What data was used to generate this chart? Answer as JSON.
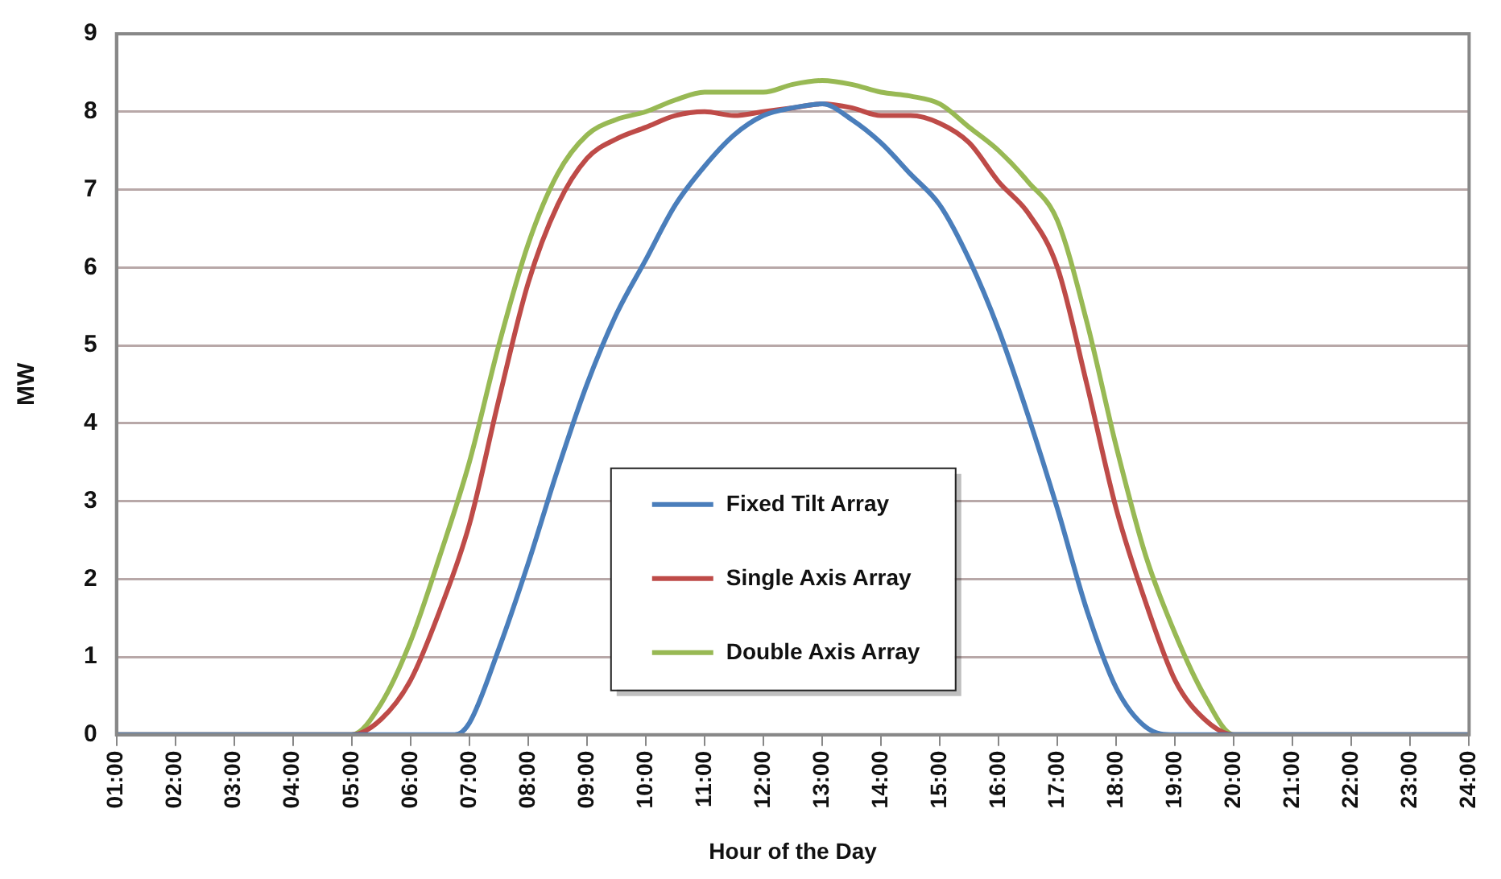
{
  "chart_data": {
    "type": "line",
    "xlabel": "Hour of the Day",
    "ylabel": "MW",
    "xlim": [
      1,
      24
    ],
    "xticks": [
      {
        "value": 1,
        "label": "01:00"
      },
      {
        "value": 2,
        "label": "02:00"
      },
      {
        "value": 3,
        "label": "03:00"
      },
      {
        "value": 4,
        "label": "04:00"
      },
      {
        "value": 5,
        "label": "05:00"
      },
      {
        "value": 6,
        "label": "06:00"
      },
      {
        "value": 7,
        "label": "07:00"
      },
      {
        "value": 8,
        "label": "08:00"
      },
      {
        "value": 9,
        "label": "09:00"
      },
      {
        "value": 10,
        "label": "10:00"
      },
      {
        "value": 11,
        "label": "11:00"
      },
      {
        "value": 12,
        "label": "12:00"
      },
      {
        "value": 13,
        "label": "13:00"
      },
      {
        "value": 14,
        "label": "14:00"
      },
      {
        "value": 15,
        "label": "15:00"
      },
      {
        "value": 16,
        "label": "16:00"
      },
      {
        "value": 17,
        "label": "17:00"
      },
      {
        "value": 18,
        "label": "18:00"
      },
      {
        "value": 19,
        "label": "19:00"
      },
      {
        "value": 20,
        "label": "20:00"
      },
      {
        "value": 21,
        "label": "21:00"
      },
      {
        "value": 22,
        "label": "22:00"
      },
      {
        "value": 23,
        "label": "23:00"
      },
      {
        "value": 24,
        "label": "24:00"
      }
    ],
    "ylim": [
      0,
      9
    ],
    "yticks": [
      0,
      1,
      2,
      3,
      4,
      5,
      6,
      7,
      8,
      9
    ],
    "grid": "y",
    "legend": "bottom",
    "marker": "none",
    "line_style": "solid",
    "series": [
      {
        "name": "Fixed Tilt Array",
        "color": "#4a7ebb",
        "x": [
          1,
          6.75,
          7,
          7.5,
          8,
          8.5,
          9,
          9.5,
          10,
          10.5,
          11,
          11.5,
          12,
          12.5,
          13,
          13.5,
          14,
          14.5,
          15,
          15.5,
          16,
          16.5,
          17,
          17.5,
          18,
          18.5,
          19,
          24
        ],
        "values": [
          0,
          0,
          0.15,
          1.1,
          2.2,
          3.4,
          4.5,
          5.4,
          6.1,
          6.8,
          7.3,
          7.7,
          7.95,
          8.05,
          8.1,
          7.9,
          7.6,
          7.2,
          6.8,
          6.1,
          5.2,
          4.1,
          2.9,
          1.6,
          0.6,
          0.1,
          0,
          0
        ]
      },
      {
        "name": "Single Axis Array",
        "color": "#be4b48",
        "x": [
          1,
          5,
          5.5,
          6,
          6.5,
          7,
          7.5,
          8,
          8.5,
          9,
          9.5,
          10,
          10.5,
          11,
          11.5,
          12,
          12.5,
          13,
          13.5,
          14,
          14.5,
          15,
          15.5,
          16,
          16.5,
          17,
          17.5,
          18,
          18.5,
          19,
          19.5,
          20,
          24
        ],
        "values": [
          0,
          0,
          0.2,
          0.7,
          1.6,
          2.7,
          4.3,
          5.8,
          6.8,
          7.4,
          7.65,
          7.8,
          7.95,
          8.0,
          7.95,
          8.0,
          8.05,
          8.1,
          8.05,
          7.95,
          7.95,
          7.85,
          7.6,
          7.1,
          6.7,
          6.0,
          4.5,
          2.9,
          1.7,
          0.7,
          0.2,
          0,
          0
        ]
      },
      {
        "name": "Double Axis Array",
        "color": "#98b954",
        "x": [
          1,
          5,
          5.5,
          6,
          6.5,
          7,
          7.5,
          8,
          8.5,
          9,
          9.5,
          10,
          10.5,
          11,
          11.5,
          12,
          12.5,
          13,
          13.5,
          14,
          14.5,
          15,
          15.5,
          16,
          16.5,
          17,
          17.5,
          18,
          18.5,
          19,
          19.5,
          20,
          24
        ],
        "values": [
          0,
          0,
          0.4,
          1.2,
          2.3,
          3.5,
          5.0,
          6.3,
          7.2,
          7.7,
          7.9,
          8.0,
          8.15,
          8.25,
          8.25,
          8.25,
          8.35,
          8.4,
          8.35,
          8.25,
          8.2,
          8.1,
          7.8,
          7.5,
          7.1,
          6.6,
          5.3,
          3.7,
          2.3,
          1.3,
          0.5,
          0,
          0
        ]
      }
    ]
  }
}
